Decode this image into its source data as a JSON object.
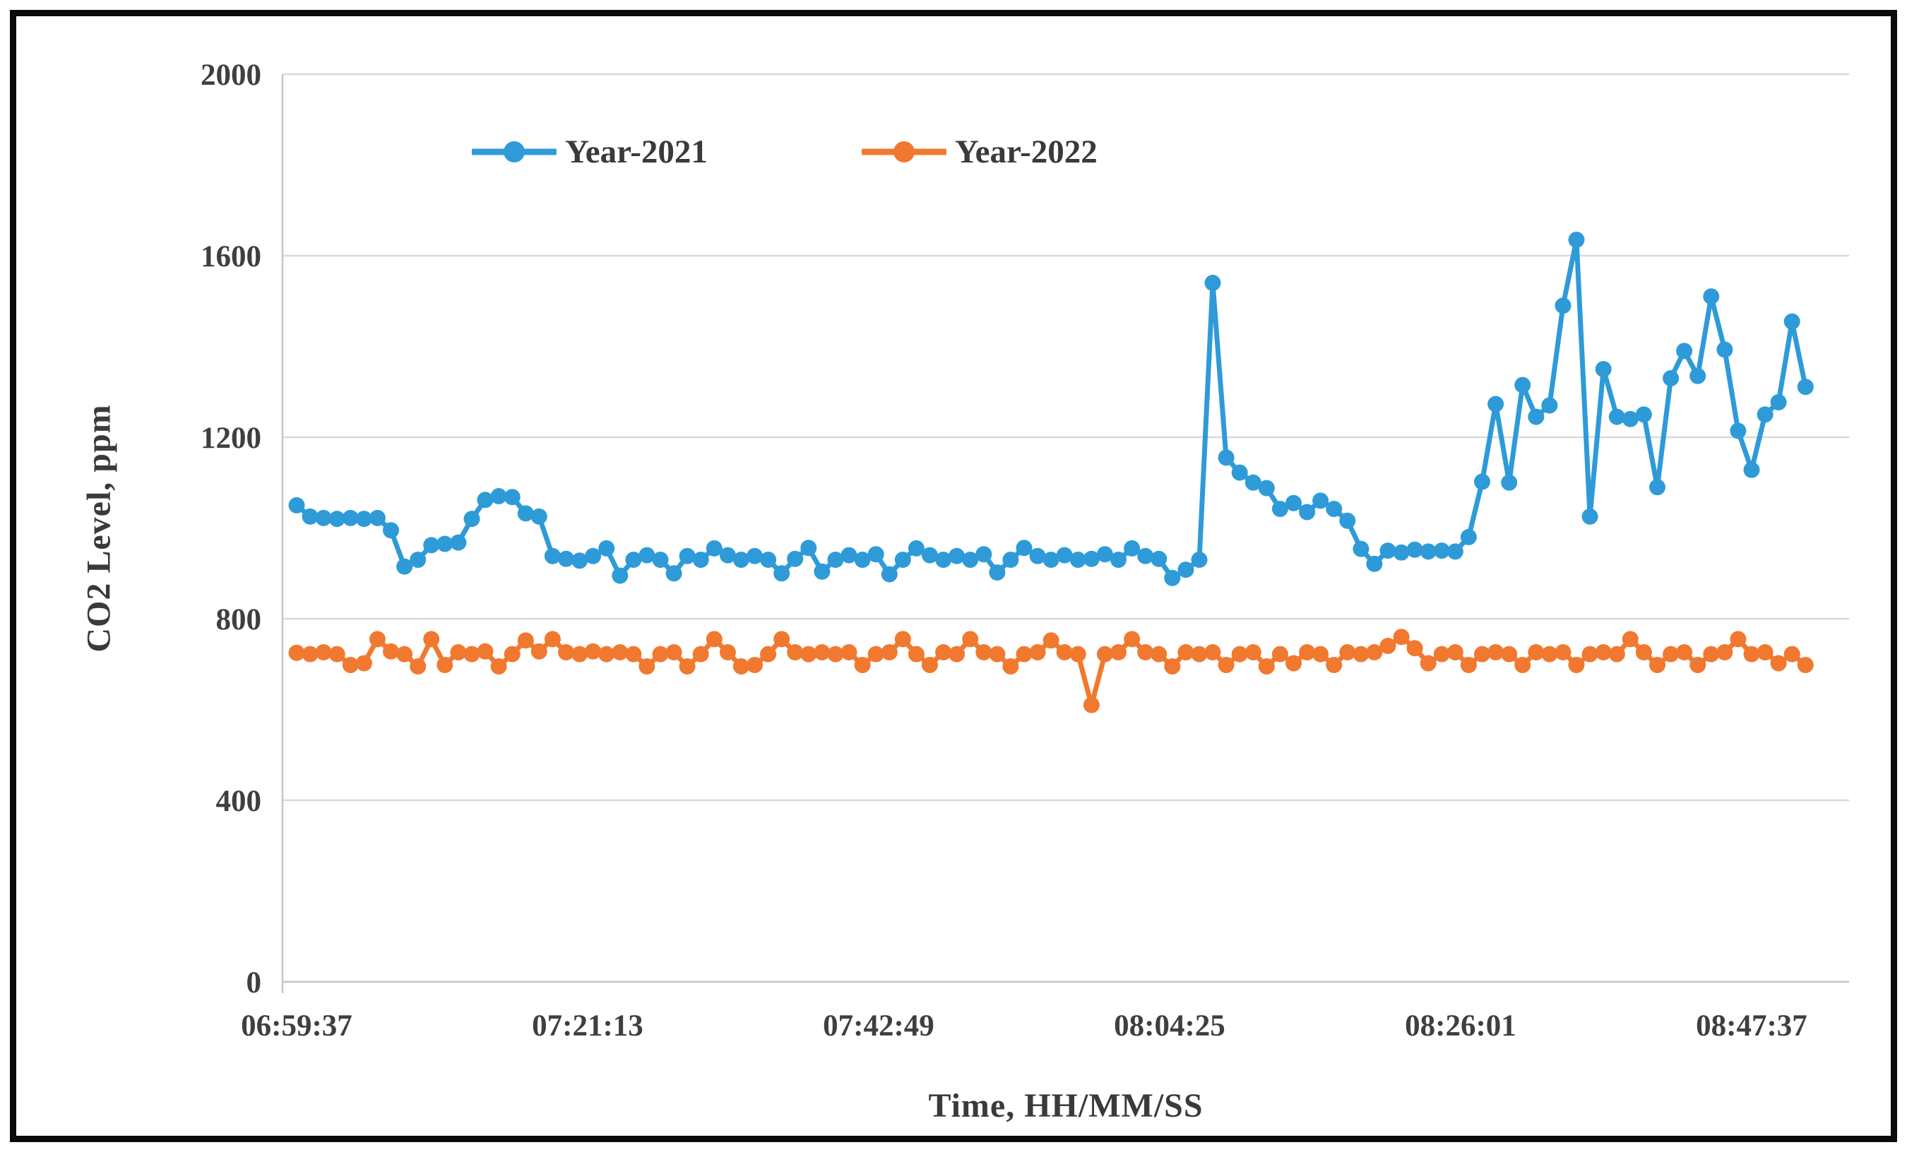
{
  "chart_data": {
    "type": "line",
    "title": "",
    "xlabel": "Time, HH/MM/SS",
    "ylabel": "CO2 Level, ppm",
    "ylim": [
      0,
      2000
    ],
    "yticks": [
      2000,
      1600,
      1200,
      800,
      400,
      0
    ],
    "xticks": [
      "06:59:37",
      "07:21:13",
      "07:42:49",
      "08:04:25",
      "08:26:01",
      "08:47:37"
    ],
    "x_start": "06:59:37",
    "x_interval_seconds": 60,
    "n_points": 113,
    "grid": "horizontal",
    "legend_position": "top-inside",
    "marker": "circle",
    "colors": {
      "year2021": "#2e9bd8",
      "year2022": "#f1792f",
      "gridline": "#d9d9d9",
      "axis": "#c6c6c6",
      "text": "#3f3f3f"
    },
    "series": [
      {
        "name": "Year-2021",
        "color_key": "year2021",
        "values": [
          1050,
          1025,
          1022,
          1020,
          1022,
          1020,
          1022,
          995,
          915,
          930,
          962,
          965,
          968,
          1020,
          1062,
          1070,
          1068,
          1032,
          1025,
          938,
          932,
          928,
          938,
          955,
          895,
          930,
          940,
          930,
          900,
          938,
          930,
          955,
          940,
          930,
          938,
          930,
          900,
          932,
          956,
          904,
          930,
          940,
          930,
          942,
          898,
          930,
          955,
          940,
          930,
          938,
          930,
          942,
          902,
          930,
          956,
          938,
          930,
          940,
          930,
          932,
          942,
          930,
          955,
          938,
          932,
          890,
          908,
          930,
          1540,
          1155,
          1122,
          1100,
          1088,
          1042,
          1055,
          1035,
          1060,
          1042,
          1016,
          954,
          921,
          950,
          946,
          952,
          948,
          950,
          948,
          980,
          1102,
          1273,
          1100,
          1315,
          1245,
          1270,
          1490,
          1635,
          1025,
          1350,
          1245,
          1240,
          1250,
          1090,
          1330,
          1390,
          1335,
          1510,
          1393,
          1214,
          1128,
          1250,
          1277,
          1455,
          1311
        ]
      },
      {
        "name": "Year-2022",
        "color_key": "year2022",
        "values": [
          725,
          722,
          726,
          722,
          698,
          702,
          755,
          728,
          722,
          695,
          755,
          698,
          726,
          722,
          728,
          695,
          722,
          752,
          728,
          755,
          726,
          722,
          728,
          722,
          726,
          722,
          695,
          722,
          726,
          695,
          722,
          755,
          726,
          695,
          698,
          722,
          755,
          726,
          722,
          726,
          722,
          726,
          698,
          722,
          726,
          755,
          722,
          698,
          726,
          722,
          755,
          726,
          722,
          695,
          722,
          726,
          752,
          726,
          722,
          610,
          722,
          726,
          755,
          726,
          722,
          695,
          726,
          722,
          726,
          698,
          722,
          726,
          695,
          722,
          702,
          726,
          722,
          698,
          726,
          722,
          726,
          740,
          760,
          735,
          702,
          722,
          726,
          698,
          722,
          726,
          722,
          698,
          726,
          722,
          726,
          698,
          722,
          726,
          722,
          755,
          726,
          698,
          722,
          726,
          698,
          722,
          726,
          755,
          722,
          726,
          702,
          722,
          698
        ]
      }
    ]
  }
}
